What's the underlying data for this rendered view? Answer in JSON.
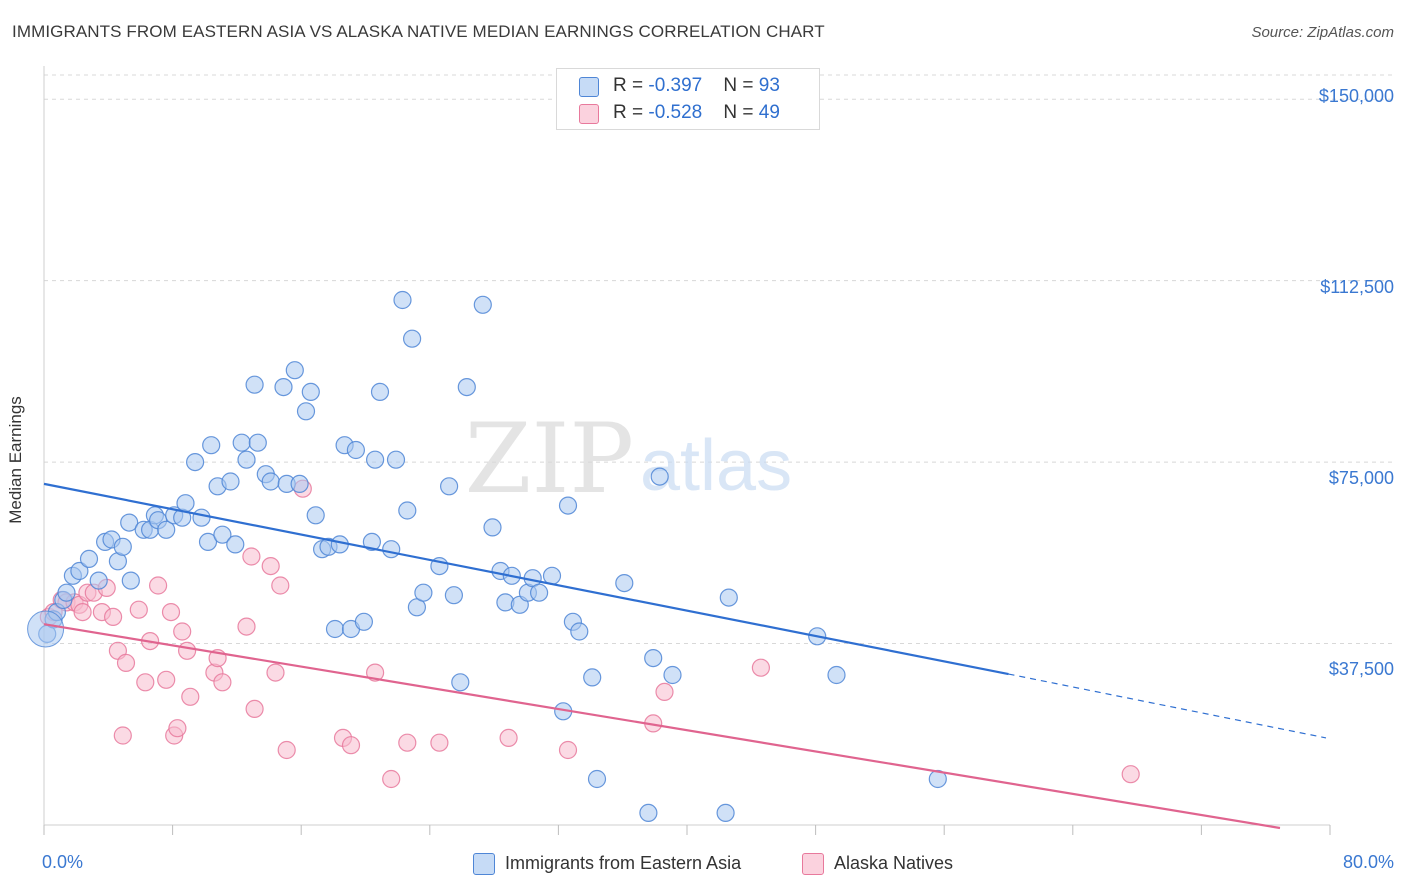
{
  "title": "IMMIGRANTS FROM EASTERN ASIA VS ALASKA NATIVE MEDIAN EARNINGS CORRELATION CHART",
  "source": "Source: ZipAtlas.com",
  "watermark": {
    "zip": "ZIP",
    "atlas": "atlas"
  },
  "legend_top": [
    {
      "r_label": "R = ",
      "r_value": "-0.397",
      "n_label": "N = ",
      "n_value": "93"
    },
    {
      "r_label": "R = ",
      "r_value": "-0.528",
      "n_label": "N = ",
      "n_value": "49"
    }
  ],
  "colors": {
    "blue_fill": "#a9c8f0",
    "blue_stroke": "#4f86d6",
    "blue_line": "#2f6fd1",
    "pink_fill": "#f7bccd",
    "pink_stroke": "#e8799c",
    "pink_line": "#e0648f",
    "grid": "#d8d8d8",
    "tick_text": "#3a78d1"
  },
  "chart_data": {
    "type": "scatter",
    "title": "IMMIGRANTS FROM EASTERN ASIA VS ALASKA NATIVE MEDIAN EARNINGS CORRELATION CHART",
    "xlabel": "",
    "ylabel": "Median Earnings",
    "xlim": [
      0,
      80
    ],
    "ylim": [
      0,
      155000
    ],
    "x_tick_labels": [
      "0.0%",
      "80.0%"
    ],
    "y_ticks": [
      37500,
      75000,
      112500,
      150000
    ],
    "y_tick_labels": [
      "$37,500",
      "$75,000",
      "$112,500",
      "$150,000"
    ],
    "grid": true,
    "legend_position": "bottom",
    "series": [
      {
        "name": "Immigrants from Eastern Asia",
        "color": "#4f86d6",
        "r": -0.397,
        "n": 93,
        "trend": {
          "x0": 0,
          "y0": 70500,
          "x1": 60,
          "y1": 31200,
          "dash_to_x": 80,
          "dash_to_y": 18000
        },
        "points": [
          [
            0.2,
            39500
          ],
          [
            0.6,
            42500
          ],
          [
            0.8,
            44000
          ],
          [
            1.2,
            46500
          ],
          [
            1.4,
            48000
          ],
          [
            1.8,
            51500
          ],
          [
            2.2,
            52500
          ],
          [
            2.8,
            55000
          ],
          [
            3.4,
            50500
          ],
          [
            3.8,
            58500
          ],
          [
            4.2,
            59000
          ],
          [
            4.6,
            54500
          ],
          [
            4.9,
            57500
          ],
          [
            5.4,
            50500
          ],
          [
            5.3,
            62500
          ],
          [
            6.2,
            61000
          ],
          [
            6.6,
            61000
          ],
          [
            6.9,
            64000
          ],
          [
            7.1,
            63000
          ],
          [
            7.6,
            61000
          ],
          [
            8.1,
            64000
          ],
          [
            8.6,
            63500
          ],
          [
            8.8,
            66500
          ],
          [
            9.4,
            75000
          ],
          [
            9.8,
            63500
          ],
          [
            10.2,
            58500
          ],
          [
            10.4,
            78500
          ],
          [
            10.8,
            70000
          ],
          [
            11.1,
            60000
          ],
          [
            11.6,
            71000
          ],
          [
            11.9,
            58000
          ],
          [
            12.3,
            79000
          ],
          [
            12.6,
            75500
          ],
          [
            13.1,
            91000
          ],
          [
            13.3,
            79000
          ],
          [
            13.8,
            72500
          ],
          [
            14.1,
            71000
          ],
          [
            14.9,
            90500
          ],
          [
            15.1,
            70500
          ],
          [
            15.6,
            94000
          ],
          [
            15.9,
            70500
          ],
          [
            16.3,
            85500
          ],
          [
            16.6,
            89500
          ],
          [
            16.9,
            64000
          ],
          [
            17.3,
            57000
          ],
          [
            17.7,
            57500
          ],
          [
            18.1,
            40500
          ],
          [
            18.4,
            58000
          ],
          [
            18.7,
            78500
          ],
          [
            19.1,
            40500
          ],
          [
            19.4,
            77500
          ],
          [
            19.9,
            42000
          ],
          [
            20.4,
            58500
          ],
          [
            20.6,
            75500
          ],
          [
            20.9,
            89500
          ],
          [
            21.6,
            57000
          ],
          [
            21.9,
            75500
          ],
          [
            22.3,
            108500
          ],
          [
            22.6,
            65000
          ],
          [
            22.9,
            100500
          ],
          [
            23.2,
            45000
          ],
          [
            23.6,
            48000
          ],
          [
            24.6,
            53500
          ],
          [
            25.2,
            70000
          ],
          [
            25.5,
            47500
          ],
          [
            25.9,
            29500
          ],
          [
            26.3,
            90500
          ],
          [
            27.3,
            107500
          ],
          [
            27.9,
            61500
          ],
          [
            28.4,
            52500
          ],
          [
            28.7,
            46000
          ],
          [
            29.1,
            51500
          ],
          [
            29.6,
            45500
          ],
          [
            30.1,
            48000
          ],
          [
            30.4,
            51000
          ],
          [
            30.8,
            48000
          ],
          [
            31.6,
            51500
          ],
          [
            32.3,
            23500
          ],
          [
            32.6,
            66000
          ],
          [
            32.9,
            42000
          ],
          [
            33.3,
            40000
          ],
          [
            34.1,
            30500
          ],
          [
            34.4,
            9500
          ],
          [
            36.1,
            50000
          ],
          [
            37.6,
            2500
          ],
          [
            37.9,
            34500
          ],
          [
            38.3,
            72000
          ],
          [
            39.1,
            31000
          ],
          [
            42.4,
            2500
          ],
          [
            42.6,
            47000
          ],
          [
            48.1,
            39000
          ],
          [
            49.3,
            31000
          ],
          [
            55.6,
            9500
          ]
        ]
      },
      {
        "name": "Alaska Natives",
        "color": "#e8799c",
        "r": -0.528,
        "n": 49,
        "trend": {
          "x0": 0,
          "y0": 41500,
          "x1": 80,
          "y1": -1000
        },
        "points": [
          [
            0.3,
            43000
          ],
          [
            0.6,
            44000
          ],
          [
            1.1,
            46500
          ],
          [
            1.4,
            46000
          ],
          [
            1.9,
            46000
          ],
          [
            2.2,
            45500
          ],
          [
            2.4,
            44000
          ],
          [
            2.7,
            48000
          ],
          [
            3.1,
            48000
          ],
          [
            3.6,
            44000
          ],
          [
            3.9,
            49000
          ],
          [
            4.3,
            43000
          ],
          [
            4.6,
            36000
          ],
          [
            4.9,
            18500
          ],
          [
            5.1,
            33500
          ],
          [
            5.9,
            44500
          ],
          [
            6.3,
            29500
          ],
          [
            6.6,
            38000
          ],
          [
            7.1,
            49500
          ],
          [
            7.6,
            30000
          ],
          [
            7.9,
            44000
          ],
          [
            8.1,
            18500
          ],
          [
            8.3,
            20000
          ],
          [
            8.6,
            40000
          ],
          [
            8.9,
            36000
          ],
          [
            9.1,
            26500
          ],
          [
            10.6,
            31500
          ],
          [
            10.8,
            34500
          ],
          [
            11.1,
            29500
          ],
          [
            12.6,
            41000
          ],
          [
            12.9,
            55500
          ],
          [
            13.1,
            24000
          ],
          [
            14.1,
            53500
          ],
          [
            14.4,
            31500
          ],
          [
            14.7,
            49500
          ],
          [
            15.1,
            15500
          ],
          [
            16.1,
            69500
          ],
          [
            18.6,
            18000
          ],
          [
            19.1,
            16500
          ],
          [
            20.6,
            31500
          ],
          [
            21.6,
            9500
          ],
          [
            22.6,
            17000
          ],
          [
            24.6,
            17000
          ],
          [
            28.9,
            18000
          ],
          [
            32.6,
            15500
          ],
          [
            37.9,
            21000
          ],
          [
            38.6,
            27500
          ],
          [
            44.6,
            32500
          ],
          [
            67.6,
            10500
          ]
        ]
      }
    ]
  },
  "legend_bottom": [
    "Immigrants from Eastern Asia",
    "Alaska Natives"
  ]
}
